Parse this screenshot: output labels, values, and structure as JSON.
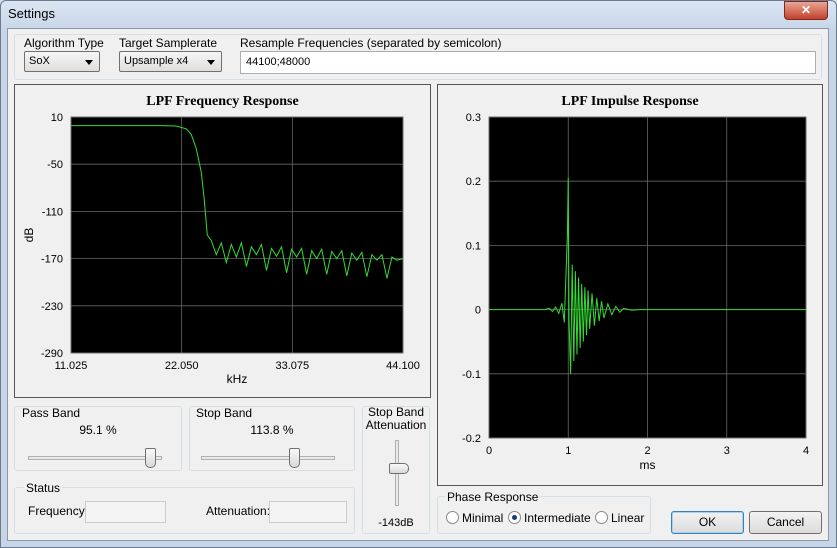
{
  "window": {
    "title": "Settings"
  },
  "algorithm": {
    "label": "Algorithm Type",
    "value": "SoX"
  },
  "samplerate": {
    "label": "Target Samplerate",
    "value": "Upsample x4"
  },
  "resample": {
    "label": "Resample Frequencies (separated by semicolon)",
    "value": "44100;48000"
  },
  "pass_band": {
    "label": "Pass Band",
    "value": "95.1 %"
  },
  "stop_band": {
    "label": "Stop Band",
    "value": "113.8 %"
  },
  "attenuation": {
    "label": "Stop Band Attenuation",
    "value": "-143dB"
  },
  "status": {
    "label": "Status",
    "frequency_label": "Frequency:",
    "attenuation_label": "Attenuation:"
  },
  "phase": {
    "label": "Phase Response",
    "options": [
      "Minimal",
      "Intermediate",
      "Linear"
    ]
  },
  "buttons": {
    "ok": "OK",
    "cancel": "Cancel"
  },
  "chart_data": [
    {
      "type": "line",
      "title": "LPF Frequency Response",
      "xlabel": "kHz",
      "ylabel": "dB",
      "grid": true,
      "xlim": [
        11.025,
        44.1
      ],
      "ylim": [
        -290,
        10
      ],
      "xticks": [
        11.025,
        {
          "value": 22.05,
          "label": "22.050"
        },
        33.075,
        {
          "value": 44.1,
          "label": "44.100"
        }
      ],
      "yticks": [
        10,
        -50,
        -110,
        -170,
        -230,
        -290
      ],
      "series": [
        {
          "color": "#33dd33",
          "x": [
            11.03,
            20.0,
            21.5,
            22.5,
            23.0,
            23.5,
            24.0,
            24.3,
            24.6,
            25.0,
            25.5,
            26.0,
            26.5,
            27.0,
            27.5,
            28.0,
            28.5,
            29.0,
            29.5,
            30.0,
            30.5,
            31.0,
            31.5,
            32.0,
            32.5,
            33.0,
            33.5,
            34.0,
            34.5,
            35.0,
            35.5,
            36.0,
            36.5,
            37.0,
            37.5,
            38.0,
            38.5,
            39.0,
            39.5,
            40.0,
            40.5,
            41.0,
            41.5,
            42.0,
            42.5,
            43.0,
            43.5,
            44.1
          ],
          "values": [
            -1,
            -1,
            -1.5,
            -5,
            -12,
            -30,
            -60,
            -95,
            -140,
            -147,
            -165,
            -150,
            -175,
            -152,
            -168,
            -150,
            -180,
            -155,
            -165,
            -152,
            -185,
            -157,
            -167,
            -155,
            -188,
            -158,
            -168,
            -157,
            -190,
            -160,
            -170,
            -158,
            -190,
            -161,
            -170,
            -160,
            -192,
            -163,
            -172,
            -162,
            -193,
            -165,
            -172,
            -165,
            -195,
            -168,
            -172,
            -170
          ]
        }
      ]
    },
    {
      "type": "line",
      "title": "LPF Impulse Response",
      "xlabel": "ms",
      "grid": true,
      "xlim": [
        0,
        4
      ],
      "ylim": [
        -0.2,
        0.3
      ],
      "xticks": [
        0,
        1,
        2,
        3,
        4
      ],
      "yticks": [
        0.3,
        0.2,
        0.1,
        0,
        -0.1,
        -0.2
      ],
      "series": [
        {
          "color": "#33dd33",
          "x": [
            0,
            0.7,
            0.76,
            0.8,
            0.84,
            0.88,
            0.92,
            0.95,
            0.97,
            0.99,
            1.0,
            1.01,
            1.03,
            1.05,
            1.07,
            1.09,
            1.11,
            1.13,
            1.15,
            1.17,
            1.19,
            1.21,
            1.23,
            1.25,
            1.27,
            1.3,
            1.33,
            1.36,
            1.39,
            1.42,
            1.45,
            1.5,
            1.55,
            1.6,
            1.65,
            1.7,
            1.8,
            1.9,
            4
          ],
          "values": [
            0,
            0,
            0.002,
            -0.003,
            0.004,
            -0.006,
            0.01,
            -0.02,
            0.05,
            0.12,
            0.205,
            -0.02,
            -0.1,
            0.07,
            -0.08,
            0.06,
            -0.07,
            0.05,
            -0.06,
            0.04,
            -0.05,
            0.035,
            -0.04,
            0.03,
            -0.03,
            0.025,
            -0.025,
            0.018,
            -0.018,
            0.013,
            -0.013,
            0.009,
            -0.008,
            0.005,
            -0.004,
            0.002,
            -0.001,
            0,
            0
          ]
        }
      ]
    }
  ]
}
